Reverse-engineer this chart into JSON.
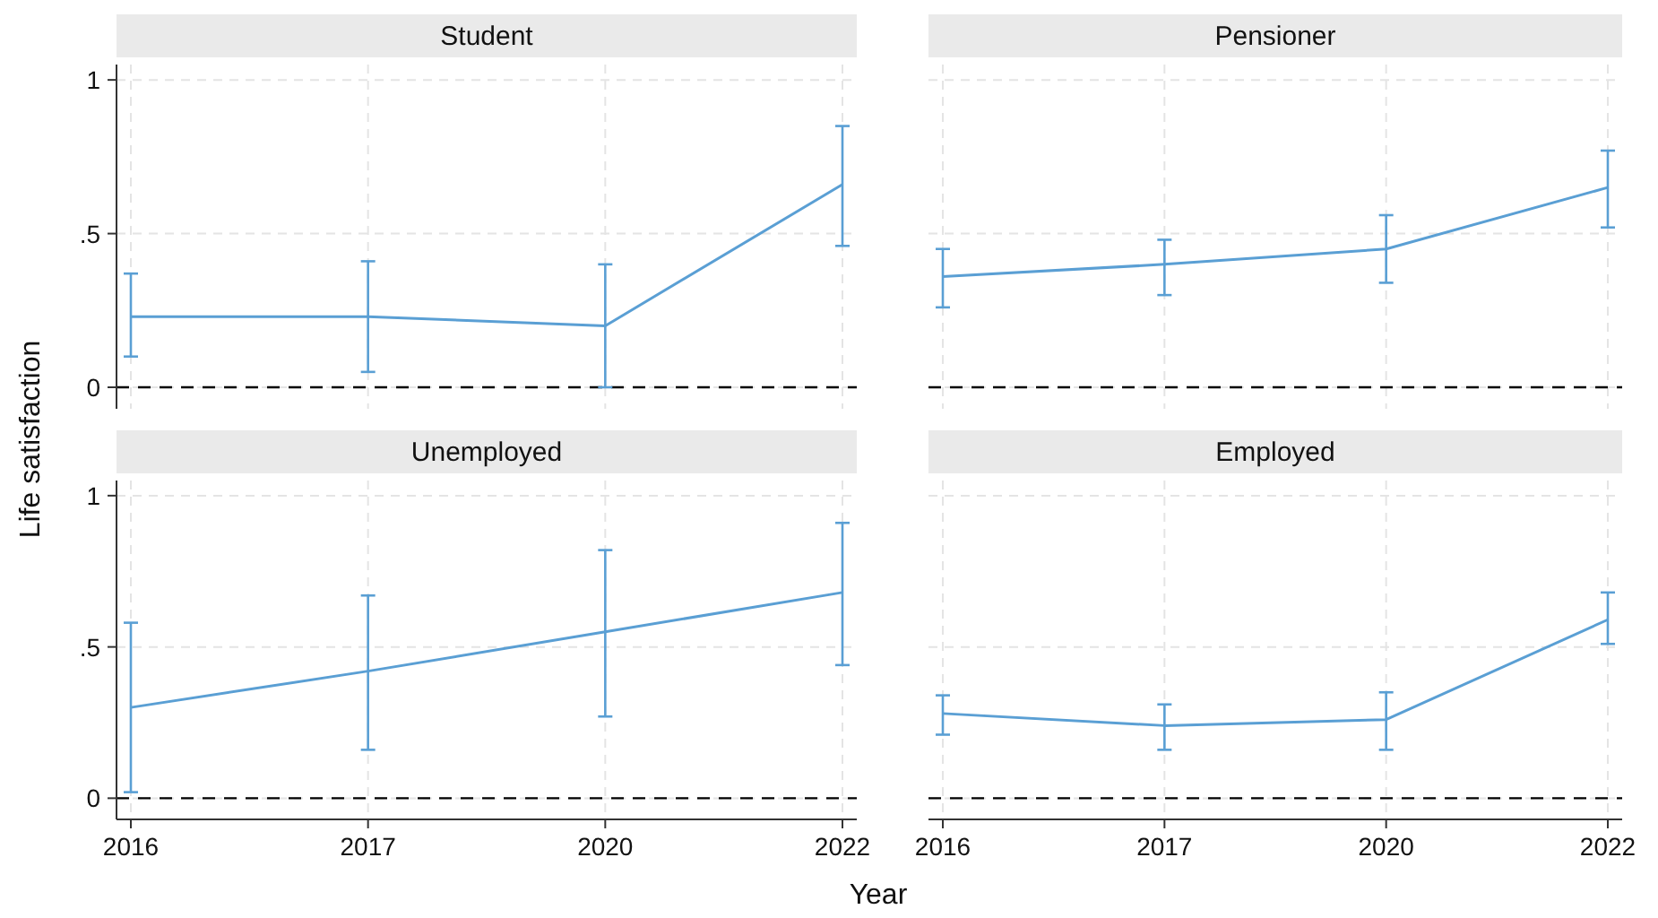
{
  "chart_data": [
    {
      "type": "line",
      "title": "Student",
      "ylabel": "Life satisfaction",
      "categories": [
        "2016",
        "2017",
        "2020",
        "2022"
      ],
      "series": [
        {
          "color": "#5a9fd4",
          "values": [
            0.23,
            0.23,
            0.2,
            0.66
          ],
          "errors": [
            [
              0.1,
              0.37
            ],
            [
              0.05,
              0.41
            ],
            [
              0.0,
              0.4
            ],
            [
              0.46,
              0.85
            ]
          ]
        }
      ],
      "ylim": [
        -0.07,
        1.05
      ],
      "yticks": [
        {
          "value": 0,
          "label": "0"
        },
        {
          "value": 0.5,
          "label": ".5"
        },
        {
          "value": 1,
          "label": "1"
        }
      ],
      "grid": true,
      "marker": "none",
      "line_style": "solid",
      "tick_labels": "y",
      "ref_lines": [
        {
          "axis": "y",
          "value": 0,
          "color": "#000000",
          "line_style": "dashed"
        }
      ]
    },
    {
      "type": "line",
      "title": "Pensioner",
      "categories": [
        "2016",
        "2017",
        "2020",
        "2022"
      ],
      "series": [
        {
          "color": "#5a9fd4",
          "values": [
            0.36,
            0.4,
            0.45,
            0.65
          ],
          "errors": [
            [
              0.26,
              0.45
            ],
            [
              0.3,
              0.48
            ],
            [
              0.34,
              0.56
            ],
            [
              0.52,
              0.77
            ]
          ]
        }
      ],
      "ylim": [
        -0.07,
        1.05
      ],
      "yticks": [
        0,
        0.5,
        1
      ],
      "grid": true,
      "marker": "none",
      "line_style": "solid",
      "tick_labels": false,
      "ref_lines": [
        {
          "axis": "y",
          "value": 0,
          "color": "#000000",
          "line_style": "dashed"
        }
      ]
    },
    {
      "type": "line",
      "title": "Unemployed",
      "xlabel": "Year",
      "categories": [
        "2016",
        "2017",
        "2020",
        "2022"
      ],
      "series": [
        {
          "color": "#5a9fd4",
          "values": [
            0.3,
            0.42,
            0.55,
            0.68
          ],
          "errors": [
            [
              0.02,
              0.58
            ],
            [
              0.16,
              0.67
            ],
            [
              0.27,
              0.82
            ],
            [
              0.44,
              0.91
            ]
          ]
        }
      ],
      "ylim": [
        -0.07,
        1.05
      ],
      "yticks": [
        {
          "value": 0,
          "label": "0"
        },
        {
          "value": 0.5,
          "label": ".5"
        },
        {
          "value": 1,
          "label": "1"
        }
      ],
      "grid": true,
      "marker": "none",
      "line_style": "solid",
      "ref_lines": [
        {
          "axis": "y",
          "value": 0,
          "color": "#000000",
          "line_style": "dashed"
        }
      ]
    },
    {
      "type": "line",
      "title": "Employed",
      "categories": [
        "2016",
        "2017",
        "2020",
        "2022"
      ],
      "series": [
        {
          "color": "#5a9fd4",
          "values": [
            0.28,
            0.24,
            0.26,
            0.59
          ],
          "errors": [
            [
              0.21,
              0.34
            ],
            [
              0.16,
              0.31
            ],
            [
              0.16,
              0.35
            ],
            [
              0.51,
              0.68
            ]
          ]
        }
      ],
      "ylim": [
        -0.07,
        1.05
      ],
      "yticks": [
        0,
        0.5,
        1
      ],
      "grid": true,
      "marker": "none",
      "line_style": "solid",
      "tick_labels": "x",
      "ref_lines": [
        {
          "axis": "y",
          "value": 0,
          "color": "#000000",
          "line_style": "dashed"
        }
      ]
    }
  ]
}
